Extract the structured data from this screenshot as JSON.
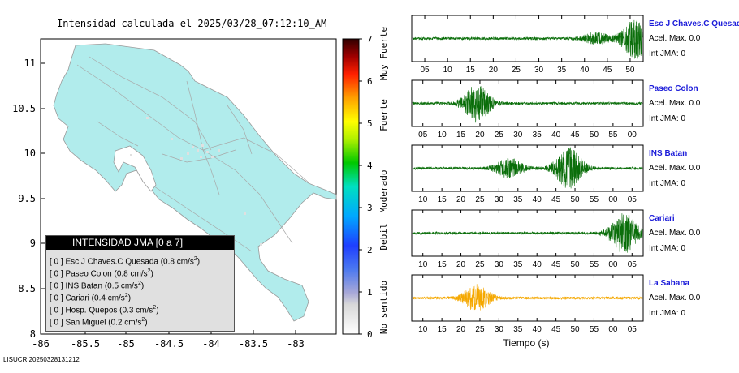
{
  "title": "Intensidad calculada el 2025/03/28_07:12:10_AM",
  "footer": "LISUCR 20250328131212",
  "map": {
    "x_ticks": [
      "-86",
      "-85.5",
      "-85",
      "-84.5",
      "-84",
      "-83.5",
      "-83"
    ],
    "y_ticks": [
      "11",
      "10.5",
      "10",
      "9.5",
      "9",
      "8.5",
      "8"
    ]
  },
  "colorbar": {
    "ticks": [
      "7",
      "6",
      "5",
      "4",
      "3",
      "2",
      "1",
      "0"
    ],
    "labels": [
      "Muy Fuerte",
      "Fuerte",
      "Moderado",
      "Debil",
      "No sentido"
    ]
  },
  "legend": {
    "title": "INTENSIDAD JMA [0 a 7]",
    "items": [
      {
        "text": "[ 0 ]  Esc J Chaves.C Quesada (0.8 cm/s",
        "sup": "2",
        "close": ")"
      },
      {
        "text": "[ 0 ]  Paseo Colon (0.8 cm/s",
        "sup": "2",
        "close": ")"
      },
      {
        "text": "[ 0 ]  INS Batan (0.5 cm/s",
        "sup": "2",
        "close": ")"
      },
      {
        "text": "[ 0 ]  Cariari (0.4 cm/s",
        "sup": "2",
        "close": ")"
      },
      {
        "text": "[ 0 ]  Hosp. Quepos (0.3 cm/s",
        "sup": "2",
        "close": ")"
      },
      {
        "text": "[ 0 ]  San Miguel (0.2 cm/s",
        "sup": "2",
        "close": ")"
      }
    ]
  },
  "chart_data": {
    "type": "line",
    "xlabel": "Tiempo (s)",
    "panels": [
      {
        "station": "Esc J Chaves.C Quesada",
        "accel": "Acel. Max. 0.0",
        "int": "Int JMA: 0",
        "color": "#0a6e0a",
        "ticks": [
          "05",
          "10",
          "15",
          "20",
          "25",
          "30",
          "35",
          "40",
          "45",
          "50"
        ],
        "burst_positions": [
          0.8,
          0.97
        ],
        "burst_amps": [
          0.25,
          0.9
        ]
      },
      {
        "station": "Paseo Colon",
        "accel": "Acel. Max. 0.0",
        "int": "Int JMA: 0",
        "color": "#0a6e0a",
        "ticks": [
          "05",
          "10",
          "15",
          "20",
          "25",
          "30",
          "35",
          "40",
          "45",
          "50",
          "55",
          "00"
        ],
        "burst_positions": [
          0.28
        ],
        "burst_amps": [
          0.85
        ]
      },
      {
        "station": "INS Batan",
        "accel": "Acel. Max. 0.0",
        "int": "Int JMA: 0",
        "color": "#0a6e0a",
        "ticks": [
          "10",
          "15",
          "20",
          "25",
          "30",
          "35",
          "40",
          "45",
          "50",
          "55",
          "00",
          "05"
        ],
        "burst_positions": [
          0.42,
          0.68
        ],
        "burst_amps": [
          0.45,
          0.95
        ]
      },
      {
        "station": "Cariari",
        "accel": "Acel. Max. 0.0",
        "int": "Int JMA: 0",
        "color": "#0a6e0a",
        "ticks": [
          "10",
          "15",
          "20",
          "25",
          "30",
          "35",
          "40",
          "45",
          "50",
          "55",
          "00",
          "05"
        ],
        "burst_positions": [
          0.92
        ],
        "burst_amps": [
          0.9
        ]
      },
      {
        "station": "La Sabana",
        "accel": "Acel. Max. 0.0",
        "int": "Int JMA: 0",
        "color": "#f5a800",
        "ticks": [
          "10",
          "15",
          "20",
          "25",
          "30",
          "35",
          "40",
          "45",
          "50",
          "55",
          "00",
          "05"
        ],
        "burst_positions": [
          0.28
        ],
        "burst_amps": [
          0.6
        ]
      }
    ]
  }
}
